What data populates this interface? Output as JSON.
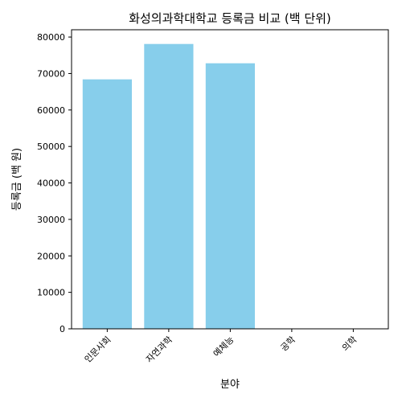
{
  "chart_data": {
    "type": "bar",
    "title": "화성의과학대학교 등록금 비교 (백 단위)",
    "xlabel": "분야",
    "ylabel": "등록금 (백 원)",
    "categories": [
      "인문사회",
      "자연과학",
      "예체능",
      "공학",
      "의학"
    ],
    "values": [
      68400,
      78100,
      72800,
      0,
      0
    ],
    "ylim": [
      0,
      82000
    ],
    "yticks": [
      "0",
      "10000",
      "20000",
      "30000",
      "40000",
      "50000",
      "60000",
      "70000",
      "80000"
    ],
    "bar_color": "#87ceeb",
    "grid": false,
    "legend": "none"
  }
}
